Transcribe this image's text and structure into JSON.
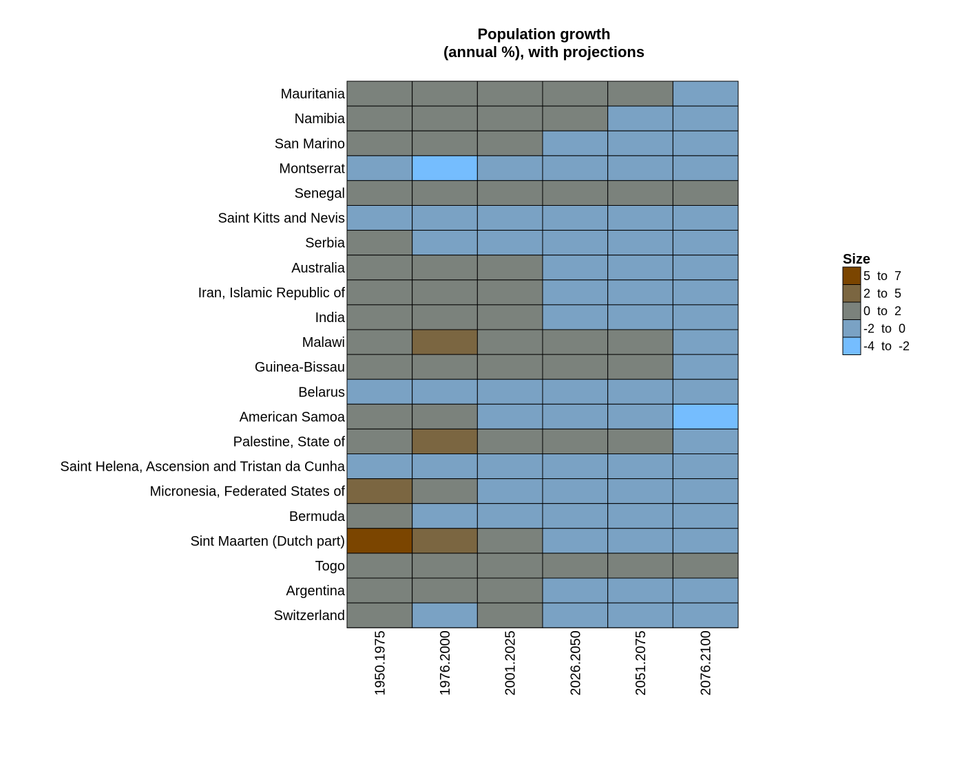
{
  "chart_data": {
    "type": "heatmap",
    "title": "Population growth\n(annual %), with projections",
    "title_lines": [
      "Population growth",
      "(annual %), with projections"
    ],
    "columns": [
      "1950.1975",
      "1976.2000",
      "2001.2025",
      "2026.2050",
      "2051.2075",
      "2076.2100"
    ],
    "rows": [
      "Mauritania",
      "Namibia",
      "San Marino",
      "Montserrat",
      "Senegal",
      "Saint Kitts and Nevis",
      "Serbia",
      "Australia",
      "Iran, Islamic Republic of",
      "India",
      "Malawi",
      "Guinea-Bissau",
      "Belarus",
      "American Samoa",
      "Palestine, State of",
      "Saint Helena, Ascension and Tristan da Cunha",
      "Micronesia, Federated States of",
      "Bermuda",
      "Sint Maarten (Dutch part)",
      "Togo",
      "Argentina",
      "Switzerland"
    ],
    "values": [
      [
        "0 to 2",
        "0 to 2",
        "0 to 2",
        "0 to 2",
        "0 to 2",
        "-2 to 0"
      ],
      [
        "0 to 2",
        "0 to 2",
        "0 to 2",
        "0 to 2",
        "-2 to 0",
        "-2 to 0"
      ],
      [
        "0 to 2",
        "0 to 2",
        "0 to 2",
        "-2 to 0",
        "-2 to 0",
        "-2 to 0"
      ],
      [
        "-2 to 0",
        "-4 to -2",
        "-2 to 0",
        "-2 to 0",
        "-2 to 0",
        "-2 to 0"
      ],
      [
        "0 to 2",
        "0 to 2",
        "0 to 2",
        "0 to 2",
        "0 to 2",
        "0 to 2"
      ],
      [
        "-2 to 0",
        "-2 to 0",
        "-2 to 0",
        "-2 to 0",
        "-2 to 0",
        "-2 to 0"
      ],
      [
        "0 to 2",
        "-2 to 0",
        "-2 to 0",
        "-2 to 0",
        "-2 to 0",
        "-2 to 0"
      ],
      [
        "0 to 2",
        "0 to 2",
        "0 to 2",
        "-2 to 0",
        "-2 to 0",
        "-2 to 0"
      ],
      [
        "0 to 2",
        "0 to 2",
        "0 to 2",
        "-2 to 0",
        "-2 to 0",
        "-2 to 0"
      ],
      [
        "0 to 2",
        "0 to 2",
        "0 to 2",
        "-2 to 0",
        "-2 to 0",
        "-2 to 0"
      ],
      [
        "0 to 2",
        "2 to 5",
        "0 to 2",
        "0 to 2",
        "0 to 2",
        "-2 to 0"
      ],
      [
        "0 to 2",
        "0 to 2",
        "0 to 2",
        "0 to 2",
        "0 to 2",
        "-2 to 0"
      ],
      [
        "-2 to 0",
        "-2 to 0",
        "-2 to 0",
        "-2 to 0",
        "-2 to 0",
        "-2 to 0"
      ],
      [
        "0 to 2",
        "0 to 2",
        "-2 to 0",
        "-2 to 0",
        "-2 to 0",
        "-4 to -2"
      ],
      [
        "0 to 2",
        "2 to 5",
        "0 to 2",
        "0 to 2",
        "0 to 2",
        "-2 to 0"
      ],
      [
        "-2 to 0",
        "-2 to 0",
        "-2 to 0",
        "-2 to 0",
        "-2 to 0",
        "-2 to 0"
      ],
      [
        "2 to 5",
        "0 to 2",
        "-2 to 0",
        "-2 to 0",
        "-2 to 0",
        "-2 to 0"
      ],
      [
        "0 to 2",
        "-2 to 0",
        "-2 to 0",
        "-2 to 0",
        "-2 to 0",
        "-2 to 0"
      ],
      [
        "5 to 7",
        "2 to 5",
        "0 to 2",
        "-2 to 0",
        "-2 to 0",
        "-2 to 0"
      ],
      [
        "0 to 2",
        "0 to 2",
        "0 to 2",
        "0 to 2",
        "0 to 2",
        "0 to 2"
      ],
      [
        "0 to 2",
        "0 to 2",
        "0 to 2",
        "-2 to 0",
        "-2 to 0",
        "-2 to 0"
      ],
      [
        "0 to 2",
        "-2 to 0",
        "0 to 2",
        "-2 to 0",
        "-2 to 0",
        "-2 to 0"
      ]
    ],
    "legend": {
      "title": "Size",
      "placement": "right",
      "items": [
        {
          "label": "5  to  7",
          "range": "5 to 7",
          "color": "#7b4500"
        },
        {
          "label": "2  to  5",
          "range": "2 to 5",
          "color": "#7b6641"
        },
        {
          "label": "0  to  2",
          "range": "0 to 2",
          "color": "#7b827c"
        },
        {
          "label": "-2  to  0",
          "range": "-2 to 0",
          "color": "#7aa2c4"
        },
        {
          "label": "-4  to  -2",
          "range": "-4 to -2",
          "color": "#75bdfe"
        }
      ]
    },
    "grid": true,
    "cell_border_color": "#000000"
  }
}
